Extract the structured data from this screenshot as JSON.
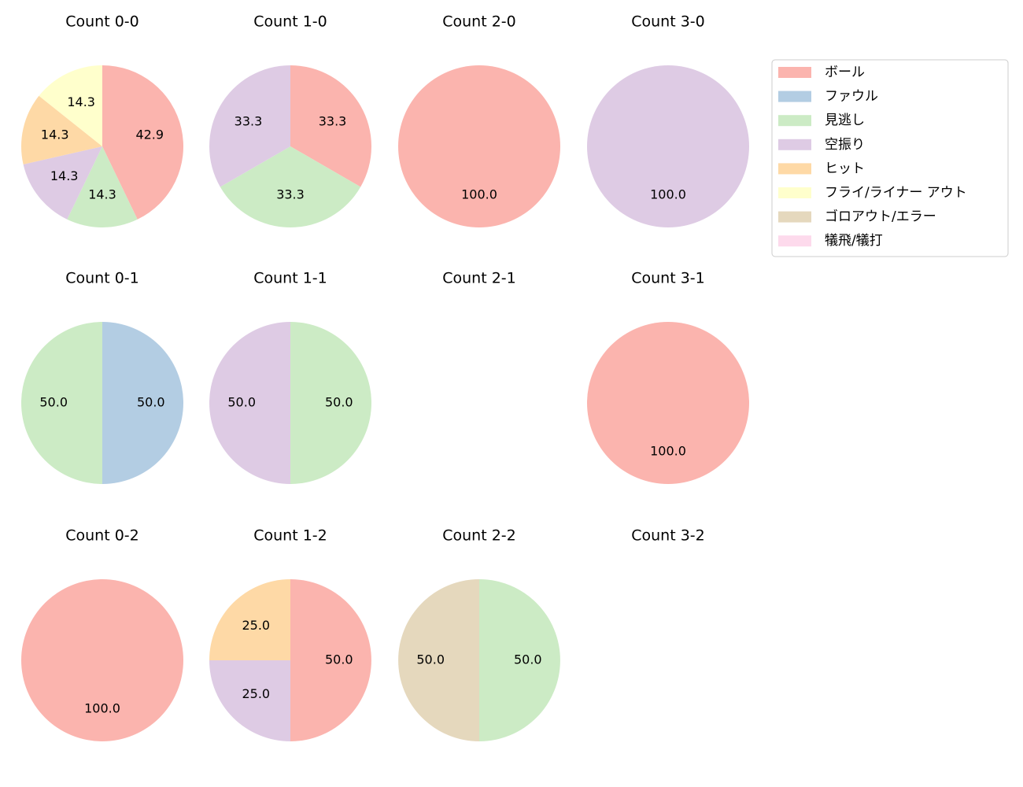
{
  "legend": {
    "labels": [
      "ボール",
      "ファウル",
      "見逃し",
      "空振り",
      "ヒット",
      "フライ/ライナー アウト",
      "ゴロアウト/エラー",
      "犠飛/犠打"
    ],
    "colors": [
      "#fbb4ae",
      "#b3cde3",
      "#ccebc5",
      "#decbe4",
      "#fed9a6",
      "#ffffcc",
      "#e5d8bd",
      "#fddaec"
    ]
  },
  "chart_data": [
    {
      "type": "pie",
      "title": "Count 0-0",
      "categories": [
        "ボール",
        "見逃し",
        "空振り",
        "ヒット",
        "フライ/ライナー アウト"
      ],
      "values": [
        42.9,
        14.3,
        14.3,
        14.3,
        14.3
      ]
    },
    {
      "type": "pie",
      "title": "Count 1-0",
      "categories": [
        "ボール",
        "見逃し",
        "空振り"
      ],
      "values": [
        33.3,
        33.3,
        33.3
      ]
    },
    {
      "type": "pie",
      "title": "Count 2-0",
      "categories": [
        "ボール"
      ],
      "values": [
        100
      ],
      "value_labels": [
        "100.0"
      ]
    },
    {
      "type": "pie",
      "title": "Count 3-0",
      "categories": [
        "空振り"
      ],
      "values": [
        100
      ],
      "value_labels": [
        "100.0"
      ]
    },
    {
      "type": "pie",
      "title": "Count 0-1",
      "categories": [
        "ファウル",
        "見逃し"
      ],
      "values": [
        50,
        50
      ],
      "value_labels": [
        "50.0",
        "50.0"
      ]
    },
    {
      "type": "pie",
      "title": "Count 1-1",
      "categories": [
        "見逃し",
        "空振り"
      ],
      "values": [
        50,
        50
      ],
      "value_labels": [
        "50.0",
        "50.0"
      ]
    },
    {
      "type": "pie",
      "title": "Count 2-1",
      "categories": [],
      "values": []
    },
    {
      "type": "pie",
      "title": "Count 3-1",
      "categories": [
        "ボール"
      ],
      "values": [
        100
      ],
      "value_labels": [
        "100.0"
      ]
    },
    {
      "type": "pie",
      "title": "Count 0-2",
      "categories": [
        "ボール"
      ],
      "values": [
        100
      ],
      "value_labels": [
        "100.0"
      ]
    },
    {
      "type": "pie",
      "title": "Count 1-2",
      "categories": [
        "ボール",
        "空振り",
        "ヒット"
      ],
      "values": [
        50,
        25,
        25
      ],
      "value_labels": [
        "50.0",
        "25.0",
        "25.0"
      ]
    },
    {
      "type": "pie",
      "title": "Count 2-2",
      "categories": [
        "見逃し",
        "ゴロアウト/エラー"
      ],
      "values": [
        50,
        50
      ],
      "value_labels": [
        "50.0",
        "50.0"
      ]
    },
    {
      "type": "pie",
      "title": "Count 3-2",
      "categories": [],
      "values": []
    }
  ]
}
